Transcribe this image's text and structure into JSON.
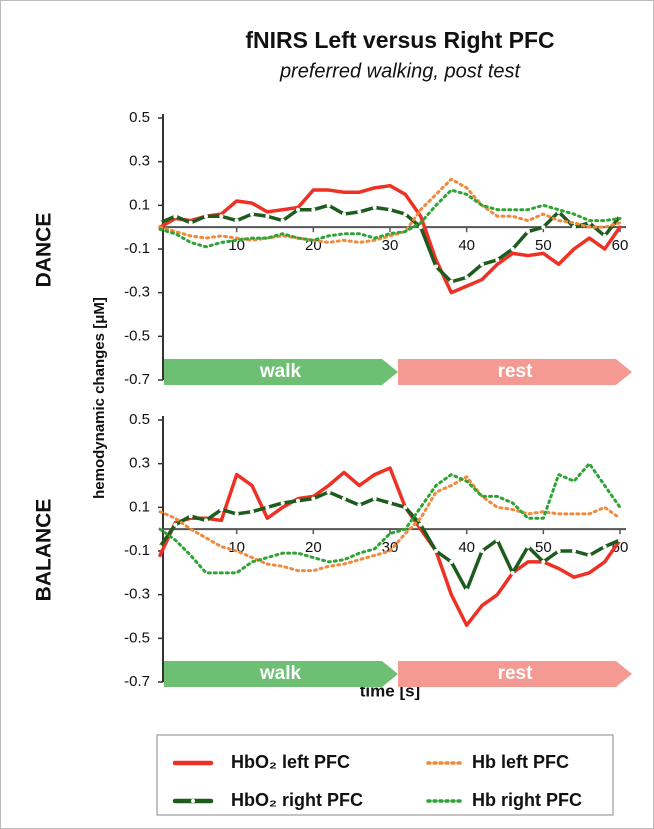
{
  "title": "fNIRS Left versus Right PFC",
  "subtitle": "preferred walking, post test",
  "ylabel": "hemodynamic changes [μM]",
  "xlabel": "time [s]",
  "chart_data": [
    {
      "type": "line",
      "row_label": "DANCE",
      "phases": [
        "walk",
        "rest"
      ],
      "x": [
        0,
        2,
        4,
        6,
        8,
        10,
        12,
        14,
        16,
        18,
        20,
        22,
        24,
        26,
        28,
        30,
        32,
        34,
        36,
        38,
        40,
        42,
        44,
        46,
        48,
        50,
        52,
        54,
        56,
        58,
        60
      ],
      "xlim": [
        0,
        60
      ],
      "xticks": [
        10,
        20,
        30,
        40,
        50,
        60
      ],
      "ylim": [
        -0.7,
        0.5
      ],
      "yticks": [
        0.5,
        0.3,
        0.1,
        -0.1,
        -0.3,
        -0.5,
        -0.7
      ],
      "series": [
        {
          "name": "HbO₂ left PFC",
          "color": "#ee3124",
          "style": "solid",
          "values": [
            0.0,
            0.04,
            0.03,
            0.05,
            0.06,
            0.12,
            0.11,
            0.07,
            0.08,
            0.09,
            0.17,
            0.17,
            0.16,
            0.16,
            0.18,
            0.19,
            0.15,
            0.05,
            -0.15,
            -0.3,
            -0.27,
            -0.24,
            -0.17,
            -0.12,
            -0.13,
            -0.12,
            -0.17,
            -0.1,
            -0.05,
            -0.1,
            0.0
          ]
        },
        {
          "name": "HbO₂ right PFC",
          "color": "#1e5c1e",
          "style": "marker",
          "values": [
            0.02,
            0.05,
            0.02,
            0.05,
            0.05,
            0.03,
            0.06,
            0.05,
            0.03,
            0.08,
            0.08,
            0.1,
            0.06,
            0.07,
            0.09,
            0.08,
            0.06,
            0.0,
            -0.18,
            -0.25,
            -0.23,
            -0.17,
            -0.15,
            -0.1,
            -0.02,
            0.0,
            0.07,
            0.0,
            0.02,
            -0.04,
            0.05
          ]
        },
        {
          "name": "Hb left PFC",
          "color": "#f08a3c",
          "style": "dotted",
          "values": [
            0.0,
            -0.02,
            -0.04,
            -0.05,
            -0.04,
            -0.05,
            -0.06,
            -0.05,
            -0.04,
            -0.05,
            -0.06,
            -0.07,
            -0.06,
            -0.07,
            -0.06,
            -0.04,
            -0.02,
            0.08,
            0.15,
            0.22,
            0.18,
            0.1,
            0.05,
            0.05,
            0.03,
            0.06,
            0.03,
            0.02,
            0.0,
            0.0,
            0.02
          ]
        },
        {
          "name": "Hb right PFC",
          "color": "#2fa336",
          "style": "dotted",
          "values": [
            -0.01,
            -0.03,
            -0.07,
            -0.09,
            -0.07,
            -0.06,
            -0.05,
            -0.05,
            -0.03,
            -0.05,
            -0.06,
            -0.04,
            -0.03,
            -0.03,
            -0.05,
            -0.03,
            -0.02,
            0.02,
            0.1,
            0.17,
            0.15,
            0.1,
            0.08,
            0.08,
            0.08,
            0.1,
            0.08,
            0.06,
            0.03,
            0.03,
            0.04
          ]
        }
      ]
    },
    {
      "type": "line",
      "row_label": "BALANCE",
      "phases": [
        "walk",
        "rest"
      ],
      "x": [
        0,
        2,
        4,
        6,
        8,
        10,
        12,
        14,
        16,
        18,
        20,
        22,
        24,
        26,
        28,
        30,
        32,
        34,
        36,
        38,
        40,
        42,
        44,
        46,
        48,
        50,
        52,
        54,
        56,
        58,
        60
      ],
      "xlim": [
        0,
        60
      ],
      "xticks": [
        10,
        20,
        30,
        40,
        50,
        60
      ],
      "ylim": [
        -0.7,
        0.5
      ],
      "yticks": [
        0.5,
        0.3,
        0.1,
        -0.1,
        -0.3,
        -0.5,
        -0.7
      ],
      "series": [
        {
          "color": "#ee3124",
          "style": "solid",
          "values": [
            -0.12,
            0.03,
            0.05,
            0.05,
            0.04,
            0.25,
            0.2,
            0.05,
            0.1,
            0.14,
            0.15,
            0.2,
            0.26,
            0.2,
            0.25,
            0.28,
            0.1,
            0.0,
            -0.1,
            -0.3,
            -0.44,
            -0.35,
            -0.3,
            -0.2,
            -0.15,
            -0.15,
            -0.18,
            -0.22,
            -0.2,
            -0.15,
            -0.05
          ]
        },
        {
          "color": "#1e5c1e",
          "style": "marker",
          "values": [
            -0.08,
            0.02,
            0.06,
            0.04,
            0.09,
            0.07,
            0.08,
            0.1,
            0.12,
            0.13,
            0.14,
            0.17,
            0.14,
            0.11,
            0.14,
            0.12,
            0.1,
            0.02,
            -0.1,
            -0.15,
            -0.28,
            -0.1,
            -0.05,
            -0.2,
            -0.08,
            -0.15,
            -0.1,
            -0.1,
            -0.12,
            -0.08,
            -0.05
          ]
        },
        {
          "color": "#f08a3c",
          "style": "dotted",
          "values": [
            0.08,
            0.05,
            0.0,
            -0.04,
            -0.08,
            -0.1,
            -0.13,
            -0.16,
            -0.17,
            -0.19,
            -0.19,
            -0.17,
            -0.16,
            -0.14,
            -0.12,
            -0.1,
            -0.02,
            0.05,
            0.17,
            0.2,
            0.24,
            0.15,
            0.1,
            0.09,
            0.07,
            0.08,
            0.07,
            0.07,
            0.07,
            0.1,
            0.05
          ]
        },
        {
          "color": "#2fa336",
          "style": "dotted",
          "values": [
            0.0,
            -0.05,
            -0.12,
            -0.2,
            -0.2,
            -0.2,
            -0.15,
            -0.13,
            -0.11,
            -0.11,
            -0.13,
            -0.15,
            -0.14,
            -0.11,
            -0.09,
            -0.02,
            0.0,
            0.1,
            0.2,
            0.25,
            0.22,
            0.15,
            0.15,
            0.12,
            0.05,
            0.05,
            0.25,
            0.22,
            0.3,
            0.2,
            0.1
          ]
        }
      ]
    }
  ]
}
